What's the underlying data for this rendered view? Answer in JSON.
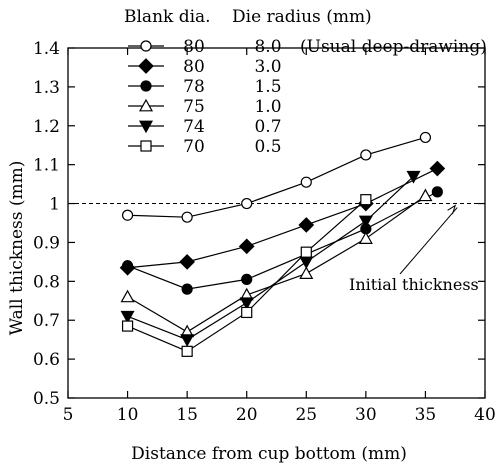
{
  "chart_data": {
    "type": "line",
    "xlabel": "Distance from cup bottom (mm)",
    "ylabel": "Wall thickness (mm)",
    "xlim": [
      5,
      40
    ],
    "ylim": [
      0.5,
      1.4
    ],
    "x_ticks": [
      "5",
      "10",
      "15",
      "20",
      "25",
      "30",
      "35",
      "40"
    ],
    "y_ticks": [
      "0.5",
      "0.6",
      "0.7",
      "0.8",
      "0.9",
      "1",
      "1.1",
      "1.2",
      "1.3",
      "1.4"
    ],
    "grid": false,
    "legend_placement": "top-left",
    "legend_headers": [
      "Blank dia.",
      "Die radius (mm)"
    ],
    "reference_line": {
      "y": 1.0,
      "style": "dashed"
    },
    "annotation": {
      "text": "Initial thickness",
      "points_to": [
        37.5,
        1.0
      ]
    },
    "series": [
      {
        "blank_dia": "80",
        "die_radius": "8.0",
        "note": "(Usual deep-drawing)",
        "marker": "circle-open",
        "x": [
          10,
          15,
          20,
          25,
          30,
          35
        ],
        "values": [
          0.97,
          0.965,
          1.0,
          1.055,
          1.125,
          1.17
        ]
      },
      {
        "blank_dia": "80",
        "die_radius": "3.0",
        "marker": "diamond-filled",
        "x": [
          10,
          15,
          20,
          25,
          30,
          36
        ],
        "values": [
          0.835,
          0.85,
          0.89,
          0.945,
          1.0,
          1.09
        ]
      },
      {
        "blank_dia": "78",
        "die_radius": "1.5",
        "marker": "circle-filled",
        "x": [
          10,
          15,
          20,
          30,
          36
        ],
        "values": [
          0.84,
          0.78,
          0.805,
          0.935,
          1.03
        ]
      },
      {
        "blank_dia": "75",
        "die_radius": "1.0",
        "marker": "triangle-up-open",
        "x": [
          10,
          15,
          20,
          25,
          30,
          35
        ],
        "values": [
          0.76,
          0.67,
          0.765,
          0.82,
          0.91,
          1.02
        ]
      },
      {
        "blank_dia": "74",
        "die_radius": "0.7",
        "marker": "triangle-down-filled",
        "x": [
          10,
          15,
          20,
          25,
          30,
          34
        ],
        "values": [
          0.71,
          0.65,
          0.745,
          0.85,
          0.955,
          1.07
        ]
      },
      {
        "blank_dia": "70",
        "die_radius": "0.5",
        "marker": "square-open",
        "x": [
          10,
          15,
          20,
          25,
          30
        ],
        "values": [
          0.685,
          0.62,
          0.72,
          0.875,
          1.01
        ]
      }
    ]
  }
}
